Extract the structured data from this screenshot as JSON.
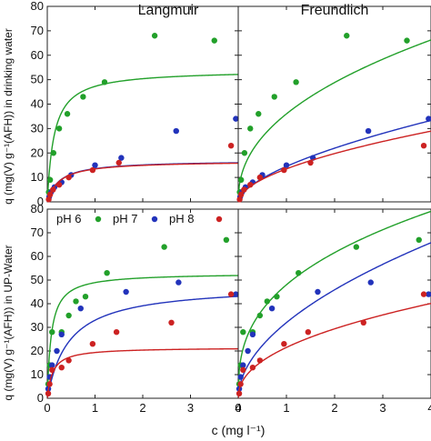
{
  "figure": {
    "col_titles": [
      "Langmuir",
      "Freundlich"
    ],
    "ylabel_top": "q (mg(V) g⁻¹(AFH)) in drinking water",
    "ylabel_bottom": "q (mg(V) g⁻¹(AFH)) in UP-Water",
    "xlabel": "c (mg l⁻¹)"
  },
  "legend": [
    {
      "name": "pH 6",
      "color": "#cc2222"
    },
    {
      "name": "pH 7",
      "color": "#22a02a"
    },
    {
      "name": "pH 8",
      "color": "#2233bb"
    },
    {
      "name": "pH 6",
      "color": "#cc2222"
    }
  ],
  "chart_data": [
    {
      "type": "scatter",
      "panel": "top-left",
      "model": "Langmuir",
      "xlim": [
        0,
        4
      ],
      "ylim": [
        0,
        80
      ],
      "xticks": [
        0,
        1,
        2,
        3,
        4
      ],
      "yticks": [
        0,
        10,
        20,
        30,
        40,
        50,
        60,
        70,
        80
      ],
      "series": [
        {
          "color": "#22a02a",
          "points": [
            [
              0.03,
              4
            ],
            [
              0.06,
              9
            ],
            [
              0.13,
              20
            ],
            [
              0.25,
              30
            ],
            [
              0.42,
              36
            ],
            [
              0.75,
              43
            ],
            [
              1.2,
              49
            ],
            [
              2.25,
              68
            ],
            [
              3.5,
              66
            ]
          ],
          "fit": {
            "model": "langmuir",
            "qmax": 54,
            "K": 7
          }
        },
        {
          "color": "#2233bb",
          "points": [
            [
              0.04,
              2
            ],
            [
              0.08,
              4
            ],
            [
              0.15,
              6
            ],
            [
              0.3,
              8
            ],
            [
              0.5,
              11
            ],
            [
              1.0,
              15
            ],
            [
              1.55,
              18
            ],
            [
              2.7,
              29
            ],
            [
              3.95,
              34
            ]
          ],
          "fit": {
            "model": "langmuir",
            "qmax": 17,
            "K": 4
          }
        },
        {
          "color": "#cc2222",
          "points": [
            [
              0.03,
              1
            ],
            [
              0.06,
              3
            ],
            [
              0.12,
              5
            ],
            [
              0.25,
              7
            ],
            [
              0.45,
              10
            ],
            [
              0.95,
              13
            ],
            [
              1.5,
              16
            ],
            [
              3.85,
              23
            ]
          ],
          "fit": {
            "model": "langmuir",
            "qmax": 16.8,
            "K": 4
          }
        }
      ]
    },
    {
      "type": "scatter",
      "panel": "top-right",
      "model": "Freundlich",
      "xlim": [
        0,
        4
      ],
      "ylim": [
        0,
        80
      ],
      "xticks": [
        0,
        1,
        2,
        3,
        4
      ],
      "yticks": [
        0,
        10,
        20,
        30,
        40,
        50,
        60,
        70,
        80
      ],
      "series": [
        {
          "color": "#22a02a",
          "points": [
            [
              0.03,
              4
            ],
            [
              0.06,
              9
            ],
            [
              0.13,
              20
            ],
            [
              0.25,
              30
            ],
            [
              0.42,
              36
            ],
            [
              0.75,
              43
            ],
            [
              1.2,
              49
            ],
            [
              2.25,
              68
            ],
            [
              3.5,
              66
            ]
          ],
          "fit": {
            "model": "freundlich",
            "K": 36,
            "n": 0.44
          }
        },
        {
          "color": "#2233bb",
          "points": [
            [
              0.04,
              2
            ],
            [
              0.08,
              4
            ],
            [
              0.15,
              6
            ],
            [
              0.3,
              8
            ],
            [
              0.5,
              11
            ],
            [
              1.0,
              15
            ],
            [
              1.55,
              18
            ],
            [
              2.7,
              29
            ],
            [
              3.95,
              34
            ]
          ],
          "fit": {
            "model": "freundlich",
            "K": 14.5,
            "n": 0.6
          }
        },
        {
          "color": "#cc2222",
          "points": [
            [
              0.03,
              1
            ],
            [
              0.06,
              3
            ],
            [
              0.12,
              5
            ],
            [
              0.25,
              7
            ],
            [
              0.45,
              10
            ],
            [
              0.95,
              13
            ],
            [
              1.5,
              16
            ],
            [
              3.85,
              23
            ]
          ],
          "fit": {
            "model": "freundlich",
            "K": 13.5,
            "n": 0.55
          }
        }
      ]
    },
    {
      "type": "scatter",
      "panel": "bottom-left",
      "model": "Langmuir",
      "xlim": [
        0,
        4
      ],
      "ylim": [
        0,
        80
      ],
      "xticks": [
        0,
        1,
        2,
        3,
        4
      ],
      "yticks": [
        0,
        10,
        20,
        30,
        40,
        50,
        60,
        70,
        80
      ],
      "series": [
        {
          "color": "#22a02a",
          "points": [
            [
              0.02,
              6
            ],
            [
              0.05,
              14
            ],
            [
              0.1,
              28
            ],
            [
              0.3,
              28
            ],
            [
              0.45,
              35
            ],
            [
              0.6,
              41
            ],
            [
              0.8,
              43
            ],
            [
              1.25,
              53
            ],
            [
              2.45,
              64
            ],
            [
              3.75,
              67
            ]
          ],
          "fit": {
            "model": "langmuir",
            "qmax": 53,
            "K": 12
          }
        },
        {
          "color": "#2233bb",
          "points": [
            [
              0.02,
              4
            ],
            [
              0.05,
              9
            ],
            [
              0.1,
              14
            ],
            [
              0.2,
              20
            ],
            [
              0.3,
              27
            ],
            [
              0.7,
              38
            ],
            [
              1.65,
              45
            ],
            [
              2.75,
              49
            ],
            [
              3.95,
              44
            ]
          ],
          "fit": {
            "model": "langmuir",
            "qmax": 48,
            "K": 2.2
          }
        },
        {
          "color": "#cc2222",
          "points": [
            [
              0.02,
              2
            ],
            [
              0.05,
              6
            ],
            [
              0.1,
              12
            ],
            [
              0.3,
              13
            ],
            [
              0.45,
              16
            ],
            [
              0.95,
              23
            ],
            [
              1.45,
              28
            ],
            [
              2.6,
              32
            ],
            [
              3.85,
              44
            ]
          ],
          "fit": {
            "model": "langmuir",
            "qmax": 21.5,
            "K": 9
          }
        }
      ]
    },
    {
      "type": "scatter",
      "panel": "bottom-right",
      "model": "Freundlich",
      "xlim": [
        0,
        4
      ],
      "ylim": [
        0,
        80
      ],
      "xticks": [
        0,
        1,
        2,
        3,
        4
      ],
      "yticks": [
        0,
        10,
        20,
        30,
        40,
        50,
        60,
        70,
        80
      ],
      "series": [
        {
          "color": "#22a02a",
          "points": [
            [
              0.02,
              6
            ],
            [
              0.05,
              14
            ],
            [
              0.1,
              28
            ],
            [
              0.3,
              28
            ],
            [
              0.45,
              35
            ],
            [
              0.6,
              41
            ],
            [
              0.8,
              43
            ],
            [
              1.25,
              53
            ],
            [
              2.45,
              64
            ],
            [
              3.75,
              67
            ]
          ],
          "fit": {
            "model": "freundlich",
            "K": 48,
            "n": 0.36
          }
        },
        {
          "color": "#2233bb",
          "points": [
            [
              0.02,
              4
            ],
            [
              0.05,
              9
            ],
            [
              0.1,
              14
            ],
            [
              0.2,
              20
            ],
            [
              0.3,
              27
            ],
            [
              0.7,
              38
            ],
            [
              1.65,
              45
            ],
            [
              2.75,
              49
            ],
            [
              3.95,
              44
            ]
          ],
          "fit": {
            "model": "freundlich",
            "K": 32,
            "n": 0.52
          }
        },
        {
          "color": "#cc2222",
          "points": [
            [
              0.02,
              2
            ],
            [
              0.05,
              6
            ],
            [
              0.1,
              12
            ],
            [
              0.3,
              13
            ],
            [
              0.45,
              16
            ],
            [
              0.95,
              23
            ],
            [
              1.45,
              28
            ],
            [
              2.6,
              32
            ],
            [
              3.85,
              44
            ]
          ],
          "fit": {
            "model": "freundlich",
            "K": 21.5,
            "n": 0.45
          }
        }
      ]
    }
  ]
}
